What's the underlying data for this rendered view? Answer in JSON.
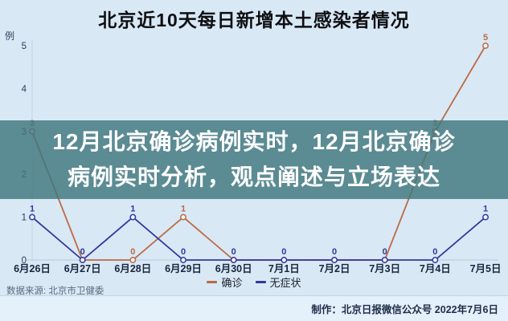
{
  "title": "北京近10天每日新增本土感染者情况",
  "y_unit_label": "例",
  "overlay": {
    "line1": "12月北京确诊病例实时，12月北京确诊",
    "line2": "病例实时分析，观点阐述与立场表达",
    "band_color": "#40767e",
    "text_color": "#ffffff"
  },
  "legend": [
    {
      "label": "确诊",
      "color": "#bc6a44"
    },
    {
      "label": "无症状",
      "color": "#32379e"
    }
  ],
  "source_note": "数据来源: 北京市卫健委",
  "credit_note": "制作：北京日报微信公众号 2022年7月6日",
  "colors": {
    "background": "#d9e8f5",
    "footer_background": "#e4f0fa",
    "axis": "#b7c8d8",
    "tick_text": "#2c3d5a",
    "date_text": "#18263f",
    "confirmed_line": "#bc6a44",
    "asymptomatic_line": "#32379e"
  },
  "chart_data": {
    "type": "line",
    "title": "北京近10天每日新增本土感染者情况",
    "ylabel": "例",
    "xlabel": "",
    "categories": [
      "6月26日",
      "6月27日",
      "6月28日",
      "6月29日",
      "6月30日",
      "7月1日",
      "7月2日",
      "7月3日",
      "7月4日",
      "7月5日"
    ],
    "series": [
      {
        "name": "确诊",
        "color": "#bc6a44",
        "values": [
          3,
          0,
          0,
          1,
          0,
          0,
          0,
          0,
          3,
          5
        ]
      },
      {
        "name": "无症状",
        "color": "#32379e",
        "values": [
          1,
          0,
          1,
          0,
          0,
          0,
          0,
          0,
          0,
          1
        ]
      }
    ],
    "ylim": [
      0,
      5
    ],
    "yticks": [
      0,
      1,
      2,
      3,
      4,
      5
    ],
    "grid": false,
    "legend_position": "bottom",
    "point_labels": true
  }
}
